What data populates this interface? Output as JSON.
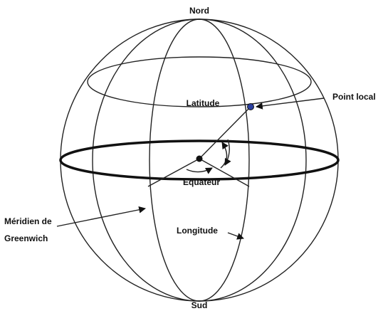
{
  "north": "Nord",
  "south": "Sud",
  "latitude": "Latitude",
  "point_local": "Point local",
  "equator": "Equateur",
  "meridian": [
    "Méridien de",
    "Greenwich"
  ],
  "longitude": "Longitude"
}
